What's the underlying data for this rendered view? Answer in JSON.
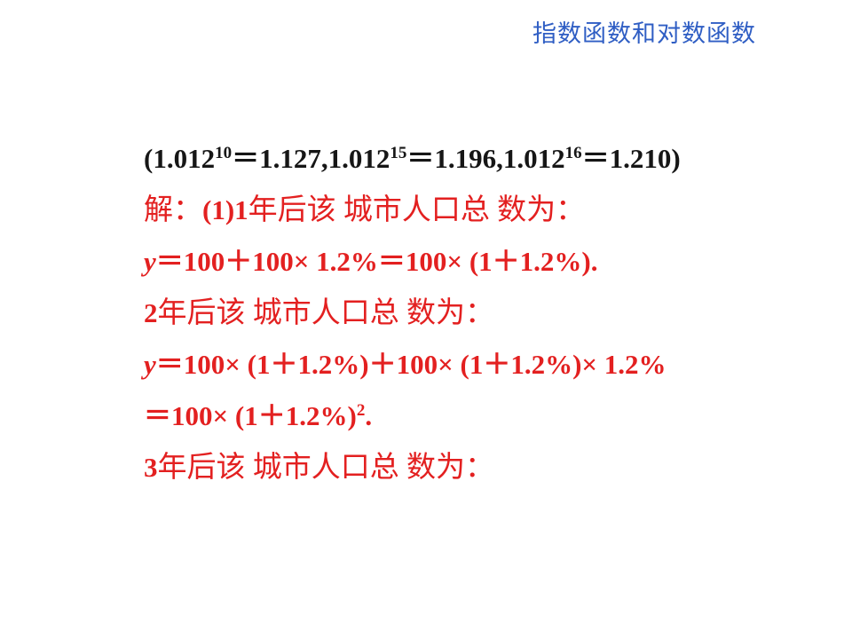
{
  "header": {
    "title": "指数函数和对数函数"
  },
  "colors": {
    "header_blue": "#2f5ec4",
    "solution_red": "#e32020",
    "given_black": "#161616",
    "background": "#ffffff"
  },
  "body": {
    "given_line": {
      "parts": [
        "(1.012",
        "10",
        "＝1.127,1.012",
        "15",
        "＝1.196,1.012",
        "16",
        "＝1.210)"
      ]
    },
    "step1_intro": {
      "prefix": "解：",
      "step": "(1)1",
      "text": "年后该 城市人口总 数为："
    },
    "eq_year1": {
      "var": "y",
      "text": "＝100＋100× 1.2%＝100× (1＋1.2%)."
    },
    "year2_intro": {
      "num": "2",
      "text": "年后该 城市人口总 数为："
    },
    "eq_year2_a": {
      "var": "y",
      "text": "＝100× (1＋1.2%)＋100× (1＋1.2%)× 1.2%"
    },
    "eq_year2_b": {
      "parts": [
        "＝100× (1＋1.2%)",
        "2",
        "."
      ]
    },
    "year3_intro": {
      "num": "3",
      "text": "年后该 城市人口总 数为："
    }
  }
}
